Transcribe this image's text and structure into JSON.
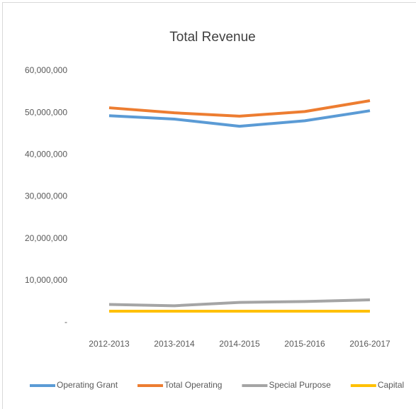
{
  "chart_data": {
    "type": "line",
    "title": "Total Revenue",
    "categories": [
      "2012-2013",
      "2013-2014",
      "2014-2015",
      "2015-2016",
      "2016-2017"
    ],
    "series": [
      {
        "name": "Operating Grant",
        "color": "#5b9bd5",
        "values": [
          49300000,
          48500000,
          46800000,
          48100000,
          50500000
        ]
      },
      {
        "name": "Total Operating",
        "color": "#ed7d31",
        "values": [
          51200000,
          50000000,
          49200000,
          50300000,
          52900000
        ]
      },
      {
        "name": "Special Purpose",
        "color": "#a5a5a5",
        "values": [
          4300000,
          4000000,
          4800000,
          5000000,
          5400000
        ]
      },
      {
        "name": "Capital",
        "color": "#ffc000",
        "values": [
          2700000,
          2700000,
          2700000,
          2700000,
          2700000
        ]
      }
    ],
    "ylim": [
      0,
      60000000
    ],
    "yticks": [
      {
        "value": 0,
        "label": "-"
      },
      {
        "value": 10000000,
        "label": "10,000,000"
      },
      {
        "value": 20000000,
        "label": "20,000,000"
      },
      {
        "value": 30000000,
        "label": "30,000,000"
      },
      {
        "value": 40000000,
        "label": "40,000,000"
      },
      {
        "value": 50000000,
        "label": "50,000,000"
      },
      {
        "value": 60000000,
        "label": "60,000,000"
      }
    ],
    "grid": false,
    "legend": "bottom"
  }
}
